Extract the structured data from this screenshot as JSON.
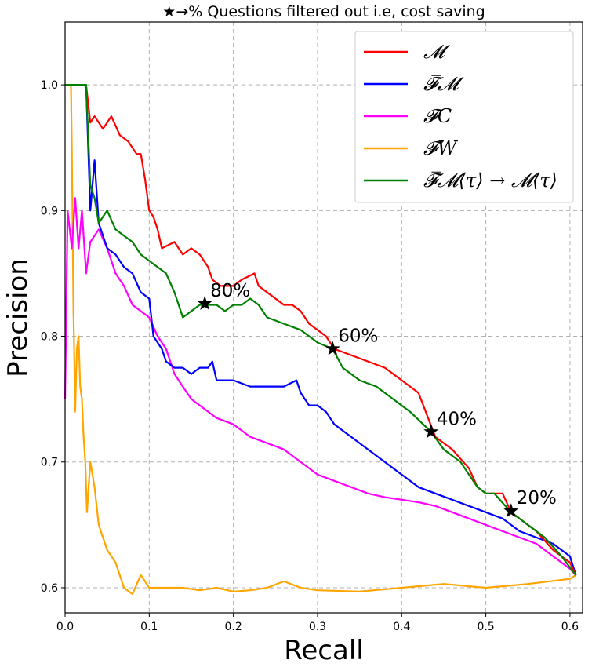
{
  "chart_data": {
    "type": "line",
    "title": "★→% Questions filtered out i.e, cost saving",
    "xlabel": "Recall",
    "ylabel": "Precision",
    "xlim": [
      0.0,
      0.615
    ],
    "ylim": [
      0.58,
      1.05
    ],
    "xticks": [
      "0.0",
      "0.1",
      "0.2",
      "0.3",
      "0.4",
      "0.5",
      "0.6"
    ],
    "yticks": [
      "0.6",
      "0.7",
      "0.8",
      "0.9",
      "1.0"
    ],
    "grid": true,
    "legend_position": "top-right",
    "series": [
      {
        "name": "𝓜",
        "color": "#ff0000",
        "points": [
          [
            0.0,
            1.0
          ],
          [
            0.025,
            1.0
          ],
          [
            0.03,
            0.97
          ],
          [
            0.035,
            0.975
          ],
          [
            0.045,
            0.965
          ],
          [
            0.055,
            0.975
          ],
          [
            0.065,
            0.96
          ],
          [
            0.075,
            0.955
          ],
          [
            0.085,
            0.945
          ],
          [
            0.09,
            0.945
          ],
          [
            0.095,
            0.925
          ],
          [
            0.1,
            0.9
          ],
          [
            0.105,
            0.895
          ],
          [
            0.11,
            0.885
          ],
          [
            0.115,
            0.87
          ],
          [
            0.13,
            0.875
          ],
          [
            0.14,
            0.865
          ],
          [
            0.15,
            0.87
          ],
          [
            0.16,
            0.865
          ],
          [
            0.17,
            0.855
          ],
          [
            0.175,
            0.845
          ],
          [
            0.185,
            0.84
          ],
          [
            0.2,
            0.84
          ],
          [
            0.21,
            0.845
          ],
          [
            0.225,
            0.85
          ],
          [
            0.23,
            0.84
          ],
          [
            0.24,
            0.835
          ],
          [
            0.26,
            0.825
          ],
          [
            0.27,
            0.825
          ],
          [
            0.28,
            0.82
          ],
          [
            0.29,
            0.81
          ],
          [
            0.3,
            0.805
          ],
          [
            0.31,
            0.8
          ],
          [
            0.32,
            0.79
          ],
          [
            0.34,
            0.785
          ],
          [
            0.36,
            0.78
          ],
          [
            0.38,
            0.775
          ],
          [
            0.4,
            0.765
          ],
          [
            0.42,
            0.755
          ],
          [
            0.44,
            0.72
          ],
          [
            0.46,
            0.71
          ],
          [
            0.48,
            0.695
          ],
          [
            0.49,
            0.68
          ],
          [
            0.5,
            0.675
          ],
          [
            0.52,
            0.675
          ],
          [
            0.53,
            0.66
          ],
          [
            0.56,
            0.645
          ],
          [
            0.58,
            0.63
          ],
          [
            0.6,
            0.62
          ],
          [
            0.607,
            0.61
          ]
        ]
      },
      {
        "name": "𝓕̅𝓜",
        "color": "#0000ff",
        "points": [
          [
            0.0,
            1.0
          ],
          [
            0.025,
            1.0
          ],
          [
            0.03,
            0.9
          ],
          [
            0.035,
            0.94
          ],
          [
            0.04,
            0.89
          ],
          [
            0.05,
            0.87
          ],
          [
            0.06,
            0.865
          ],
          [
            0.07,
            0.855
          ],
          [
            0.08,
            0.85
          ],
          [
            0.09,
            0.835
          ],
          [
            0.1,
            0.83
          ],
          [
            0.105,
            0.8
          ],
          [
            0.115,
            0.79
          ],
          [
            0.12,
            0.78
          ],
          [
            0.13,
            0.775
          ],
          [
            0.14,
            0.775
          ],
          [
            0.15,
            0.77
          ],
          [
            0.16,
            0.775
          ],
          [
            0.17,
            0.775
          ],
          [
            0.175,
            0.78
          ],
          [
            0.18,
            0.765
          ],
          [
            0.2,
            0.765
          ],
          [
            0.22,
            0.76
          ],
          [
            0.24,
            0.76
          ],
          [
            0.26,
            0.76
          ],
          [
            0.275,
            0.765
          ],
          [
            0.28,
            0.755
          ],
          [
            0.29,
            0.745
          ],
          [
            0.3,
            0.745
          ],
          [
            0.31,
            0.74
          ],
          [
            0.32,
            0.73
          ],
          [
            0.33,
            0.725
          ],
          [
            0.34,
            0.72
          ],
          [
            0.36,
            0.71
          ],
          [
            0.38,
            0.7
          ],
          [
            0.4,
            0.69
          ],
          [
            0.42,
            0.68
          ],
          [
            0.44,
            0.675
          ],
          [
            0.46,
            0.67
          ],
          [
            0.48,
            0.665
          ],
          [
            0.5,
            0.66
          ],
          [
            0.52,
            0.655
          ],
          [
            0.54,
            0.645
          ],
          [
            0.56,
            0.64
          ],
          [
            0.58,
            0.635
          ],
          [
            0.6,
            0.625
          ],
          [
            0.607,
            0.61
          ]
        ]
      },
      {
        "name": "𝓕C",
        "color": "#ff00ff",
        "points": [
          [
            0.0,
            0.75
          ],
          [
            0.003,
            0.9
          ],
          [
            0.008,
            0.87
          ],
          [
            0.012,
            0.91
          ],
          [
            0.016,
            0.87
          ],
          [
            0.02,
            0.9
          ],
          [
            0.025,
            0.85
          ],
          [
            0.03,
            0.875
          ],
          [
            0.04,
            0.885
          ],
          [
            0.05,
            0.87
          ],
          [
            0.06,
            0.85
          ],
          [
            0.07,
            0.84
          ],
          [
            0.08,
            0.825
          ],
          [
            0.09,
            0.82
          ],
          [
            0.1,
            0.815
          ],
          [
            0.11,
            0.8
          ],
          [
            0.12,
            0.79
          ],
          [
            0.13,
            0.77
          ],
          [
            0.14,
            0.76
          ],
          [
            0.15,
            0.75
          ],
          [
            0.16,
            0.745
          ],
          [
            0.18,
            0.735
          ],
          [
            0.2,
            0.73
          ],
          [
            0.22,
            0.72
          ],
          [
            0.24,
            0.715
          ],
          [
            0.26,
            0.71
          ],
          [
            0.28,
            0.7
          ],
          [
            0.3,
            0.69
          ],
          [
            0.32,
            0.685
          ],
          [
            0.34,
            0.68
          ],
          [
            0.36,
            0.675
          ],
          [
            0.38,
            0.672
          ],
          [
            0.4,
            0.67
          ],
          [
            0.42,
            0.668
          ],
          [
            0.44,
            0.665
          ],
          [
            0.46,
            0.66
          ],
          [
            0.48,
            0.655
          ],
          [
            0.5,
            0.65
          ],
          [
            0.52,
            0.645
          ],
          [
            0.54,
            0.64
          ],
          [
            0.56,
            0.635
          ],
          [
            0.58,
            0.625
          ],
          [
            0.6,
            0.615
          ],
          [
            0.607,
            0.61
          ]
        ]
      },
      {
        "name": "𝓕W",
        "color": "#ffa500",
        "points": [
          [
            0.007,
            1.0
          ],
          [
            0.008,
            0.95
          ],
          [
            0.01,
            0.82
          ],
          [
            0.012,
            0.74
          ],
          [
            0.014,
            0.79
          ],
          [
            0.016,
            0.8
          ],
          [
            0.018,
            0.76
          ],
          [
            0.02,
            0.75
          ],
          [
            0.022,
            0.72
          ],
          [
            0.024,
            0.7
          ],
          [
            0.026,
            0.66
          ],
          [
            0.028,
            0.68
          ],
          [
            0.03,
            0.7
          ],
          [
            0.035,
            0.68
          ],
          [
            0.04,
            0.65
          ],
          [
            0.045,
            0.64
          ],
          [
            0.05,
            0.63
          ],
          [
            0.06,
            0.62
          ],
          [
            0.07,
            0.6
          ],
          [
            0.08,
            0.595
          ],
          [
            0.09,
            0.61
          ],
          [
            0.1,
            0.6
          ],
          [
            0.12,
            0.6
          ],
          [
            0.14,
            0.6
          ],
          [
            0.16,
            0.598
          ],
          [
            0.18,
            0.6
          ],
          [
            0.2,
            0.597
          ],
          [
            0.22,
            0.598
          ],
          [
            0.24,
            0.6
          ],
          [
            0.26,
            0.605
          ],
          [
            0.28,
            0.6
          ],
          [
            0.3,
            0.598
          ],
          [
            0.35,
            0.597
          ],
          [
            0.4,
            0.6
          ],
          [
            0.45,
            0.603
          ],
          [
            0.5,
            0.6
          ],
          [
            0.55,
            0.603
          ],
          [
            0.6,
            0.607
          ],
          [
            0.607,
            0.61
          ]
        ]
      },
      {
        "name": "𝓕̅𝓜⟨τ⟩ → 𝓜⟨τ⟩",
        "color": "#008000",
        "points": [
          [
            0.0,
            1.0
          ],
          [
            0.025,
            1.0
          ],
          [
            0.03,
            0.92
          ],
          [
            0.035,
            0.91
          ],
          [
            0.04,
            0.89
          ],
          [
            0.045,
            0.895
          ],
          [
            0.05,
            0.9
          ],
          [
            0.06,
            0.885
          ],
          [
            0.07,
            0.88
          ],
          [
            0.08,
            0.875
          ],
          [
            0.09,
            0.865
          ],
          [
            0.1,
            0.86
          ],
          [
            0.11,
            0.855
          ],
          [
            0.12,
            0.85
          ],
          [
            0.13,
            0.835
          ],
          [
            0.14,
            0.815
          ],
          [
            0.15,
            0.82
          ],
          [
            0.16,
            0.825
          ],
          [
            0.17,
            0.825
          ],
          [
            0.18,
            0.825
          ],
          [
            0.19,
            0.82
          ],
          [
            0.2,
            0.825
          ],
          [
            0.21,
            0.825
          ],
          [
            0.22,
            0.83
          ],
          [
            0.23,
            0.825
          ],
          [
            0.24,
            0.815
          ],
          [
            0.26,
            0.81
          ],
          [
            0.28,
            0.805
          ],
          [
            0.3,
            0.795
          ],
          [
            0.318,
            0.79
          ],
          [
            0.33,
            0.775
          ],
          [
            0.35,
            0.765
          ],
          [
            0.37,
            0.76
          ],
          [
            0.39,
            0.75
          ],
          [
            0.41,
            0.74
          ],
          [
            0.435,
            0.724
          ],
          [
            0.45,
            0.71
          ],
          [
            0.47,
            0.7
          ],
          [
            0.48,
            0.69
          ],
          [
            0.49,
            0.68
          ],
          [
            0.5,
            0.675
          ],
          [
            0.51,
            0.675
          ],
          [
            0.53,
            0.66
          ],
          [
            0.55,
            0.65
          ],
          [
            0.57,
            0.64
          ],
          [
            0.59,
            0.625
          ],
          [
            0.607,
            0.61
          ]
        ]
      }
    ],
    "annotations": [
      {
        "x": 0.166,
        "y": 0.826,
        "text": "80%"
      },
      {
        "x": 0.318,
        "y": 0.79,
        "text": "60%"
      },
      {
        "x": 0.435,
        "y": 0.724,
        "text": "40%"
      },
      {
        "x": 0.53,
        "y": 0.661,
        "text": "20%"
      }
    ]
  }
}
